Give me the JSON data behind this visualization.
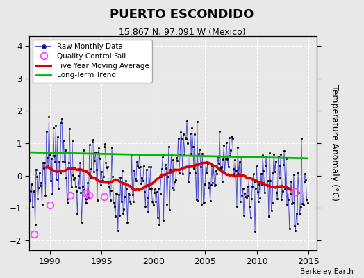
{
  "title": "PUERTO ESCONDIDO",
  "subtitle": "15.867 N, 97.091 W (Mexico)",
  "ylabel": "Temperature Anomaly (°C)",
  "credit": "Berkeley Earth",
  "ylim": [
    -2.3,
    4.3
  ],
  "xlim": [
    1988.0,
    2015.8
  ],
  "xticks": [
    1990,
    1995,
    2000,
    2005,
    2010,
    2015
  ],
  "yticks": [
    -2,
    -1,
    0,
    1,
    2,
    3,
    4
  ],
  "bg_color": "#e8e8e8",
  "raw_color": "#3333cc",
  "dot_color": "#000000",
  "mavg_color": "#dd0000",
  "trend_color": "#00bb00",
  "qc_color": "#ff44ff",
  "seed": 7
}
